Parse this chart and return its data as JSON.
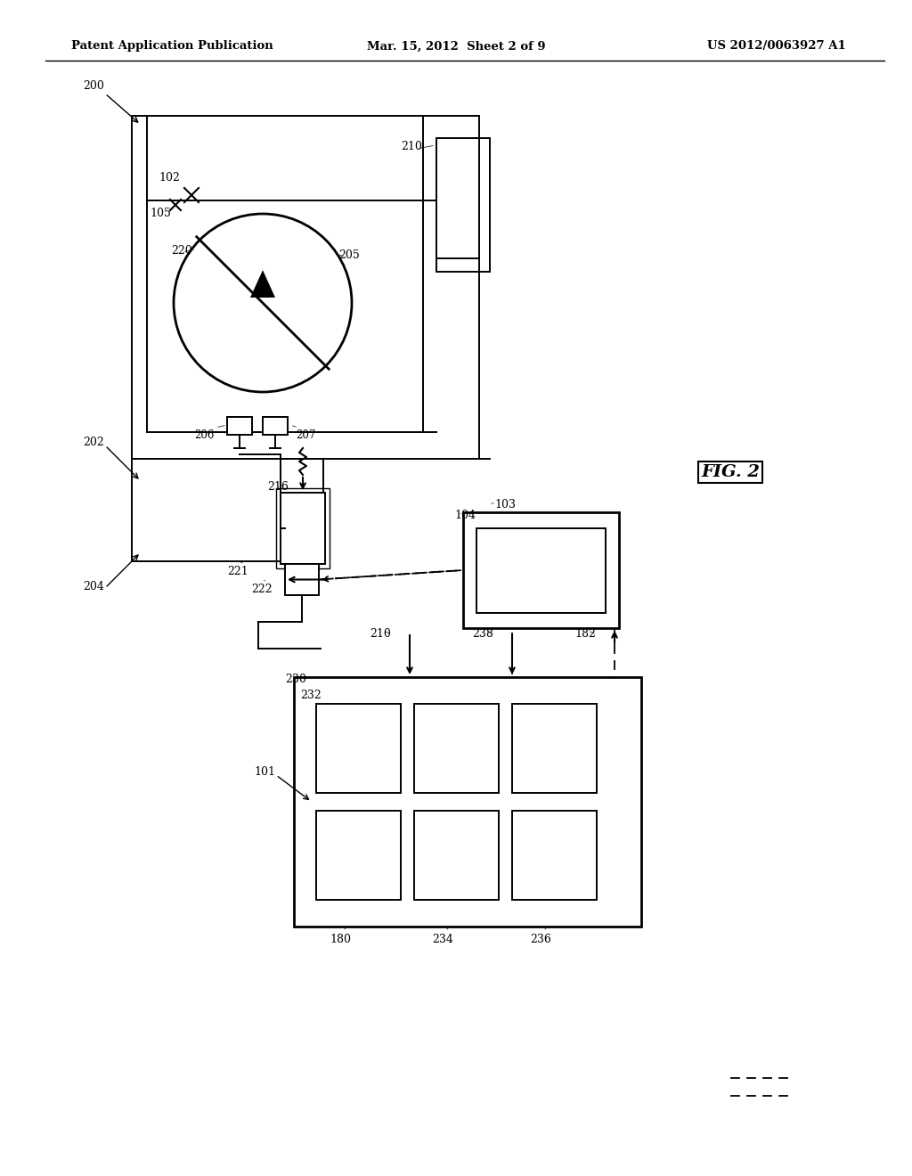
{
  "bg_color": "#ffffff",
  "header_left": "Patent Application Publication",
  "header_center": "Mar. 15, 2012  Sheet 2 of 9",
  "header_right": "US 2012/0063927 A1",
  "fig_label": "FIG. 2"
}
